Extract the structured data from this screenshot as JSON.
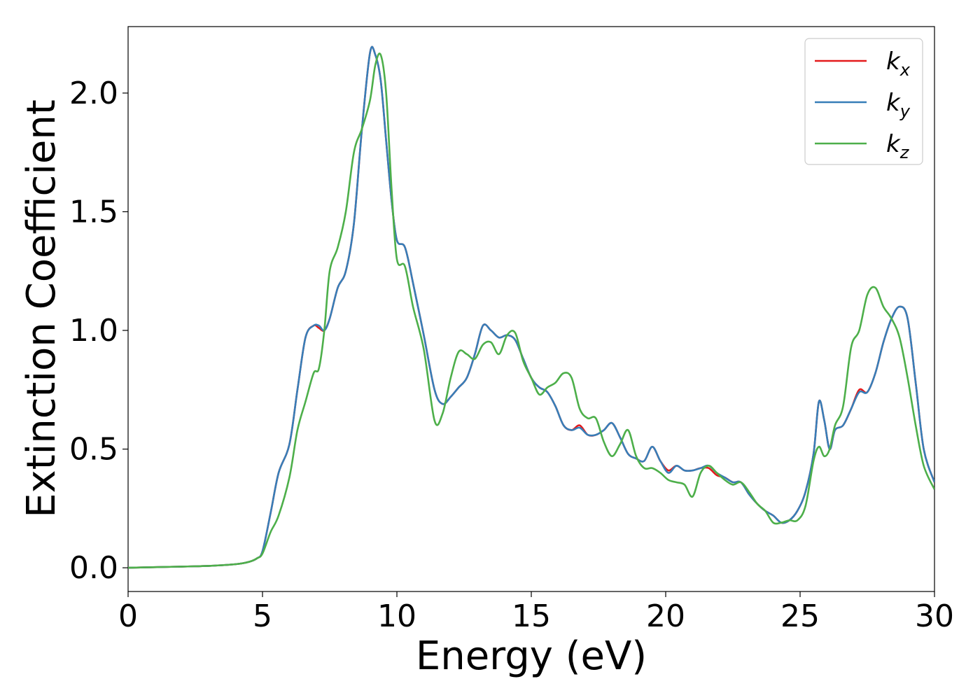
{
  "chart_data": {
    "type": "line",
    "xlabel": "Energy (eV)",
    "ylabel": "Extinction Coefficient",
    "xlim": [
      0,
      30
    ],
    "ylim": [
      -0.1,
      2.28
    ],
    "xticks": [
      0,
      5,
      10,
      15,
      20,
      25,
      30
    ],
    "yticks": [
      0.0,
      0.5,
      1.0,
      1.5,
      2.0
    ],
    "xtick_labels": [
      "0",
      "5",
      "10",
      "15",
      "20",
      "25",
      "30"
    ],
    "ytick_labels": [
      "0.0",
      "0.5",
      "1.0",
      "1.5",
      "2.0"
    ],
    "grid": false,
    "legend_position": "top-right",
    "series": [
      {
        "name": "k",
        "subscript": "x",
        "color": "#e41a1c",
        "x": [
          0,
          2,
          3,
          4,
          4.5,
          4.8,
          5.0,
          5.3,
          5.6,
          6.0,
          6.3,
          6.6,
          6.9,
          7.1,
          7.3,
          7.5,
          7.8,
          8.1,
          8.4,
          8.7,
          9.0,
          9.2,
          9.4,
          9.6,
          9.8,
          10.0,
          10.3,
          10.6,
          11.0,
          11.4,
          11.7,
          12.0,
          12.3,
          12.6,
          12.9,
          13.2,
          13.5,
          13.8,
          14.1,
          14.4,
          14.7,
          15.0,
          15.3,
          15.6,
          15.9,
          16.2,
          16.5,
          16.8,
          17.1,
          17.4,
          17.7,
          18.0,
          18.3,
          18.6,
          18.9,
          19.2,
          19.5,
          19.8,
          20.1,
          20.4,
          20.7,
          21.0,
          21.3,
          21.6,
          21.9,
          22.2,
          22.5,
          22.8,
          23.1,
          23.4,
          23.7,
          24.0,
          24.3,
          24.6,
          24.9,
          25.2,
          25.5,
          25.7,
          25.9,
          26.1,
          26.3,
          26.6,
          26.9,
          27.2,
          27.5,
          27.8,
          28.1,
          28.4,
          28.7,
          29.0,
          29.3,
          29.6,
          30.0
        ],
        "y": [
          0.0,
          0.005,
          0.008,
          0.015,
          0.025,
          0.04,
          0.07,
          0.23,
          0.4,
          0.52,
          0.75,
          0.97,
          1.02,
          1.01,
          1.0,
          1.05,
          1.18,
          1.25,
          1.45,
          1.85,
          2.17,
          2.16,
          2.05,
          1.8,
          1.55,
          1.38,
          1.35,
          1.2,
          0.98,
          0.75,
          0.69,
          0.72,
          0.76,
          0.8,
          0.9,
          1.02,
          1.0,
          0.97,
          0.98,
          0.96,
          0.88,
          0.8,
          0.76,
          0.74,
          0.68,
          0.6,
          0.58,
          0.6,
          0.56,
          0.56,
          0.58,
          0.61,
          0.55,
          0.48,
          0.46,
          0.45,
          0.51,
          0.45,
          0.41,
          0.43,
          0.41,
          0.41,
          0.42,
          0.42,
          0.39,
          0.38,
          0.36,
          0.36,
          0.31,
          0.27,
          0.24,
          0.22,
          0.19,
          0.2,
          0.24,
          0.32,
          0.48,
          0.7,
          0.62,
          0.5,
          0.58,
          0.6,
          0.67,
          0.75,
          0.74,
          0.82,
          0.95,
          1.05,
          1.1,
          1.05,
          0.78,
          0.5,
          0.36
        ]
      },
      {
        "name": "k",
        "subscript": "y",
        "color": "#377eb8",
        "x": [
          0,
          2,
          3,
          4,
          4.5,
          4.8,
          5.0,
          5.3,
          5.6,
          6.0,
          6.3,
          6.6,
          6.9,
          7.1,
          7.3,
          7.5,
          7.8,
          8.1,
          8.4,
          8.7,
          9.0,
          9.2,
          9.4,
          9.6,
          9.8,
          10.0,
          10.3,
          10.6,
          11.0,
          11.4,
          11.7,
          12.0,
          12.3,
          12.6,
          12.9,
          13.2,
          13.5,
          13.8,
          14.1,
          14.4,
          14.7,
          15.0,
          15.3,
          15.6,
          15.9,
          16.2,
          16.5,
          16.8,
          17.1,
          17.4,
          17.7,
          18.0,
          18.3,
          18.6,
          18.9,
          19.2,
          19.5,
          19.8,
          20.1,
          20.4,
          20.7,
          21.0,
          21.3,
          21.6,
          21.9,
          22.2,
          22.5,
          22.8,
          23.1,
          23.4,
          23.7,
          24.0,
          24.3,
          24.6,
          24.9,
          25.2,
          25.5,
          25.7,
          25.9,
          26.1,
          26.3,
          26.6,
          26.9,
          27.2,
          27.5,
          27.8,
          28.1,
          28.4,
          28.7,
          29.0,
          29.3,
          29.6,
          30.0
        ],
        "y": [
          0.0,
          0.005,
          0.008,
          0.015,
          0.025,
          0.04,
          0.07,
          0.23,
          0.4,
          0.52,
          0.75,
          0.97,
          1.02,
          1.02,
          1.0,
          1.05,
          1.18,
          1.25,
          1.45,
          1.85,
          2.17,
          2.16,
          2.05,
          1.8,
          1.55,
          1.38,
          1.35,
          1.2,
          0.98,
          0.75,
          0.69,
          0.72,
          0.76,
          0.8,
          0.9,
          1.02,
          1.0,
          0.97,
          0.98,
          0.96,
          0.88,
          0.8,
          0.76,
          0.74,
          0.68,
          0.6,
          0.58,
          0.59,
          0.56,
          0.56,
          0.58,
          0.61,
          0.55,
          0.48,
          0.46,
          0.45,
          0.51,
          0.45,
          0.4,
          0.43,
          0.41,
          0.41,
          0.42,
          0.43,
          0.4,
          0.38,
          0.36,
          0.36,
          0.31,
          0.27,
          0.24,
          0.22,
          0.19,
          0.2,
          0.24,
          0.32,
          0.48,
          0.7,
          0.62,
          0.5,
          0.58,
          0.6,
          0.67,
          0.74,
          0.74,
          0.82,
          0.95,
          1.05,
          1.1,
          1.05,
          0.78,
          0.5,
          0.36
        ]
      },
      {
        "name": "k",
        "subscript": "z",
        "color": "#4daf4a",
        "x": [
          0,
          2,
          3,
          4,
          4.5,
          4.8,
          5.0,
          5.3,
          5.6,
          6.0,
          6.3,
          6.6,
          6.9,
          7.1,
          7.3,
          7.5,
          7.8,
          8.1,
          8.4,
          8.7,
          9.0,
          9.2,
          9.4,
          9.6,
          9.8,
          10.0,
          10.3,
          10.6,
          11.0,
          11.4,
          11.7,
          12.0,
          12.3,
          12.6,
          12.9,
          13.2,
          13.5,
          13.8,
          14.1,
          14.4,
          14.7,
          15.0,
          15.3,
          15.6,
          15.9,
          16.2,
          16.5,
          16.8,
          17.1,
          17.4,
          17.7,
          18.0,
          18.3,
          18.6,
          18.9,
          19.2,
          19.5,
          19.8,
          20.1,
          20.4,
          20.7,
          21.0,
          21.3,
          21.6,
          21.9,
          22.2,
          22.5,
          22.8,
          23.1,
          23.4,
          23.7,
          24.0,
          24.3,
          24.6,
          24.9,
          25.2,
          25.5,
          25.7,
          25.9,
          26.1,
          26.3,
          26.6,
          26.9,
          27.2,
          27.5,
          27.8,
          28.1,
          28.4,
          28.7,
          29.0,
          29.3,
          29.6,
          30.0
        ],
        "y": [
          0.0,
          0.005,
          0.008,
          0.015,
          0.025,
          0.04,
          0.06,
          0.15,
          0.22,
          0.38,
          0.58,
          0.7,
          0.82,
          0.84,
          1.0,
          1.25,
          1.35,
          1.5,
          1.75,
          1.85,
          1.97,
          2.12,
          2.16,
          2.0,
          1.6,
          1.3,
          1.27,
          1.1,
          0.92,
          0.62,
          0.65,
          0.8,
          0.91,
          0.9,
          0.88,
          0.94,
          0.95,
          0.9,
          0.98,
          0.99,
          0.87,
          0.8,
          0.73,
          0.76,
          0.78,
          0.82,
          0.8,
          0.67,
          0.63,
          0.63,
          0.53,
          0.47,
          0.52,
          0.58,
          0.47,
          0.42,
          0.42,
          0.4,
          0.37,
          0.36,
          0.35,
          0.3,
          0.4,
          0.43,
          0.4,
          0.37,
          0.35,
          0.36,
          0.32,
          0.27,
          0.24,
          0.19,
          0.19,
          0.2,
          0.2,
          0.26,
          0.45,
          0.51,
          0.47,
          0.5,
          0.6,
          0.68,
          0.93,
          1.0,
          1.15,
          1.18,
          1.1,
          1.05,
          0.97,
          0.8,
          0.6,
          0.43,
          0.33
        ]
      }
    ]
  }
}
